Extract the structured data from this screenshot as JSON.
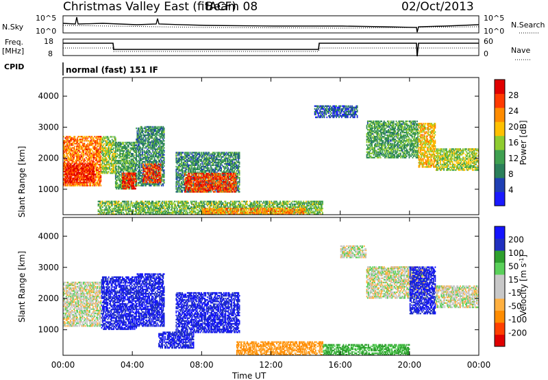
{
  "header": {
    "title": "Christmas Valley East (fitACF)",
    "beam": "Beam 08",
    "date": "02/Oct/2013"
  },
  "noise_panel": {
    "left_label": "N.Sky",
    "right_label": "N.Search",
    "left_ticks": [
      "10^5",
      "10^0"
    ],
    "right_ticks": [
      "10^5",
      "10^0"
    ]
  },
  "freq_panel": {
    "left_label_line1": "Freq.",
    "left_label_line2": "[MHz]",
    "right_label": "Nave",
    "left_ticks": [
      "18",
      "8"
    ],
    "right_ticks": [
      "60",
      "0"
    ]
  },
  "cpid": {
    "label": "CPID",
    "value": "normal (fast) 151 IF"
  },
  "colors": {
    "scale_power": [
      "#1a1aff",
      "#1f3fb4",
      "#2b7f5a",
      "#3fa050",
      "#8fcc30",
      "#ffc000",
      "#ff8c00",
      "#ff3a00",
      "#e00000"
    ],
    "scale_velocity": [
      "#e00000",
      "#ff4000",
      "#ff8c00",
      "#ffb040",
      "#c8c8c8",
      "#c8c8c8",
      "#5ad05a",
      "#2ea02e",
      "#2030c0",
      "#1414ff"
    ]
  },
  "chart_data": [
    {
      "type": "heatmap",
      "title": "",
      "xlabel": "",
      "ylabel": "Slant Range [km]",
      "x_ticks": [
        "00:00",
        "04:00",
        "08:00",
        "12:00",
        "16:00",
        "20:00",
        "00:00"
      ],
      "y_ticks": [
        1000,
        2000,
        3000,
        4000
      ],
      "xlim_hours": [
        0,
        24
      ],
      "ylim_km": [
        180,
        4600
      ],
      "colorbar": {
        "label": "Power [dB]",
        "ticks": [
          4,
          8,
          12,
          16,
          20,
          24,
          28
        ]
      },
      "regions": [
        {
          "t0": 0.0,
          "t1": 2.2,
          "r0": 1100,
          "r1": 2700,
          "value": 24
        },
        {
          "t0": 0.1,
          "t1": 1.8,
          "r0": 1200,
          "r1": 1800,
          "value": 29
        },
        {
          "t0": 2.2,
          "t1": 3.0,
          "r0": 1500,
          "r1": 2700,
          "value": 16
        },
        {
          "t0": 3.0,
          "t1": 4.2,
          "r0": 1000,
          "r1": 2500,
          "value": 12
        },
        {
          "t0": 3.4,
          "t1": 4.2,
          "r0": 1000,
          "r1": 1500,
          "value": 28
        },
        {
          "t0": 4.2,
          "t1": 5.8,
          "r0": 1100,
          "r1": 3000,
          "value": 10
        },
        {
          "t0": 4.6,
          "t1": 5.6,
          "r0": 1200,
          "r1": 1800,
          "value": 27
        },
        {
          "t0": 6.5,
          "t1": 10.2,
          "r0": 900,
          "r1": 2200,
          "value": 10
        },
        {
          "t0": 7.0,
          "t1": 10.0,
          "r0": 900,
          "r1": 1500,
          "value": 27
        },
        {
          "t0": 2.0,
          "t1": 15.0,
          "r0": 180,
          "r1": 600,
          "value": 14
        },
        {
          "t0": 8.0,
          "t1": 14.0,
          "r0": 180,
          "r1": 400,
          "value": 22
        },
        {
          "t0": 14.5,
          "t1": 17.0,
          "r0": 3300,
          "r1": 3700,
          "value": 6
        },
        {
          "t0": 17.5,
          "t1": 20.5,
          "r0": 2000,
          "r1": 3200,
          "value": 12
        },
        {
          "t0": 20.5,
          "t1": 21.5,
          "r0": 1700,
          "r1": 3100,
          "value": 20
        },
        {
          "t0": 21.5,
          "t1": 24.0,
          "r0": 1600,
          "r1": 2300,
          "value": 16
        }
      ]
    },
    {
      "type": "heatmap",
      "title": "",
      "xlabel": "Time UT",
      "ylabel": "Slant Range [km]",
      "x_ticks": [
        "00:00",
        "04:00",
        "08:00",
        "12:00",
        "16:00",
        "20:00",
        "00:00"
      ],
      "y_ticks": [
        1000,
        2000,
        3000,
        4000
      ],
      "xlim_hours": [
        0,
        24
      ],
      "ylim_km": [
        180,
        4600
      ],
      "colorbar": {
        "label": "Velocity [m s^-1]",
        "ticks": [
          200,
          100,
          50,
          15,
          -15,
          -50,
          -100,
          -200
        ]
      },
      "regions": [
        {
          "t0": 0.0,
          "t1": 2.2,
          "r0": 1100,
          "r1": 2500,
          "value": 0
        },
        {
          "t0": 2.2,
          "t1": 4.2,
          "r0": 1000,
          "r1": 2700,
          "value": 200
        },
        {
          "t0": 4.2,
          "t1": 5.8,
          "r0": 1100,
          "r1": 2800,
          "value": 200
        },
        {
          "t0": 6.5,
          "t1": 10.2,
          "r0": 900,
          "r1": 2200,
          "value": 200
        },
        {
          "t0": 5.5,
          "t1": 7.5,
          "r0": 400,
          "r1": 900,
          "value": 200
        },
        {
          "t0": 10.0,
          "t1": 15.0,
          "r0": 180,
          "r1": 600,
          "value": -60
        },
        {
          "t0": 15.0,
          "t1": 20.0,
          "r0": 180,
          "r1": 500,
          "value": 60
        },
        {
          "t0": 16.0,
          "t1": 17.5,
          "r0": 3300,
          "r1": 3700,
          "value": 0
        },
        {
          "t0": 17.5,
          "t1": 21.0,
          "r0": 2000,
          "r1": 3000,
          "value": 0
        },
        {
          "t0": 20.0,
          "t1": 21.5,
          "r0": 1500,
          "r1": 3000,
          "value": 200
        },
        {
          "t0": 21.5,
          "t1": 24.0,
          "r0": 1700,
          "r1": 2400,
          "value": 0
        }
      ]
    }
  ]
}
